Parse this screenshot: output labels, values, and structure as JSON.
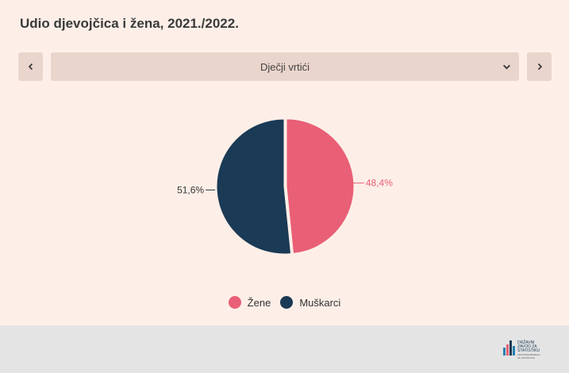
{
  "title": "Udio djevojčica i žena, 2021./2022.",
  "selector": {
    "selected": "Dječji vrtići"
  },
  "icons": {
    "prev": "chevron-left-icon",
    "next": "chevron-right-icon",
    "dropdown": "chevron-down-icon"
  },
  "chart_data": {
    "type": "pie",
    "slices": [
      {
        "name": "Žene",
        "value": 48.4,
        "label": "48,4%",
        "color": "#e95f76"
      },
      {
        "name": "Muškarci",
        "value": 51.6,
        "label": "51,6%",
        "color": "#1a3a55"
      }
    ],
    "legend_position": "bottom"
  },
  "legend": {
    "items": [
      "Žene",
      "Muškarci"
    ]
  },
  "logo": {
    "text_lines": [
      "DRŽAVNI",
      "ZAVOD ZA",
      "STATISTIKU",
      "CROATIAN BUREAU",
      "OF STATISTICS"
    ]
  }
}
